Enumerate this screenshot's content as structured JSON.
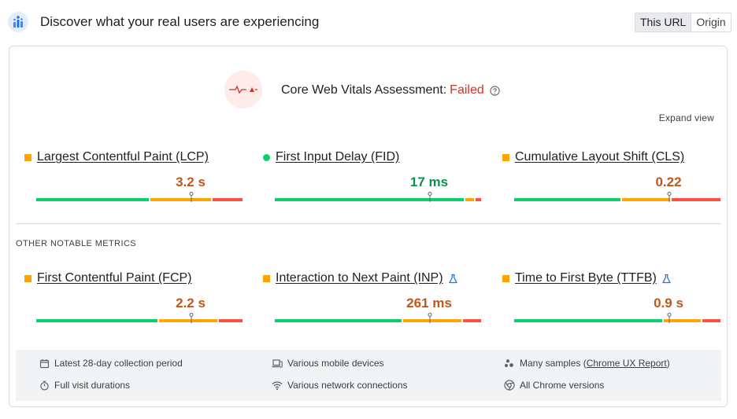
{
  "header": {
    "title": "Discover what your real users are experiencing",
    "toggle": [
      "This URL",
      "Origin"
    ],
    "active": "This URL"
  },
  "assessment": {
    "label": "Core Web Vitals Assessment:",
    "status": "Failed",
    "expand": "Expand view",
    "status_color": "#d93025"
  },
  "core_metrics": [
    {
      "name": "Largest Contentful Paint (LCP)",
      "value": "3.2 s",
      "indicator": "orange-square",
      "distribution": {
        "good": 0.55,
        "needs_improvement": 0.3,
        "poor": 0.15
      },
      "marker": 0.75
    },
    {
      "name": "First Input Delay (FID)",
      "value": "17 ms",
      "indicator": "green-circle",
      "distribution": {
        "good": 0.92,
        "needs_improvement": 0.05,
        "poor": 0.03
      },
      "marker": 0.75
    },
    {
      "name": "Cumulative Layout Shift (CLS)",
      "value": "0.22",
      "indicator": "orange-square",
      "distribution": {
        "good": 0.52,
        "needs_improvement": 0.24,
        "poor": 0.24
      },
      "marker": 0.75
    }
  ],
  "other_label": "OTHER NOTABLE METRICS",
  "other_metrics": [
    {
      "name": "First Contentful Paint (FCP)",
      "value": "2.2 s",
      "indicator": "orange-square",
      "lab_icon": false,
      "distribution": {
        "good": 0.59,
        "needs_improvement": 0.29,
        "poor": 0.12
      },
      "marker": 0.75
    },
    {
      "name": "Interaction to Next Paint (INP)",
      "value": "261 ms",
      "indicator": "orange-square",
      "lab_icon": true,
      "distribution": {
        "good": 0.62,
        "needs_improvement": 0.29,
        "poor": 0.09
      },
      "marker": 0.75
    },
    {
      "name": "Time to First Byte (TTFB)",
      "value": "0.9 s",
      "indicator": "orange-square",
      "lab_icon": true,
      "distribution": {
        "good": 0.72,
        "needs_improvement": 0.19,
        "poor": 0.09
      },
      "marker": 0.75
    }
  ],
  "footer": {
    "collection": "Latest 28-day collection period",
    "durations": "Full visit durations",
    "devices": "Various mobile devices",
    "network": "Various network connections",
    "samples_prefix": "Many samples (",
    "samples_link": "Chrome UX Report",
    "samples_suffix": ")",
    "versions": "All Chrome versions"
  },
  "colors": {
    "good": "#0cce6b",
    "needs_improvement": "#ffa400",
    "poor": "#ff4e42",
    "value_orange": "#c0561c",
    "value_green": "#0d904f"
  }
}
